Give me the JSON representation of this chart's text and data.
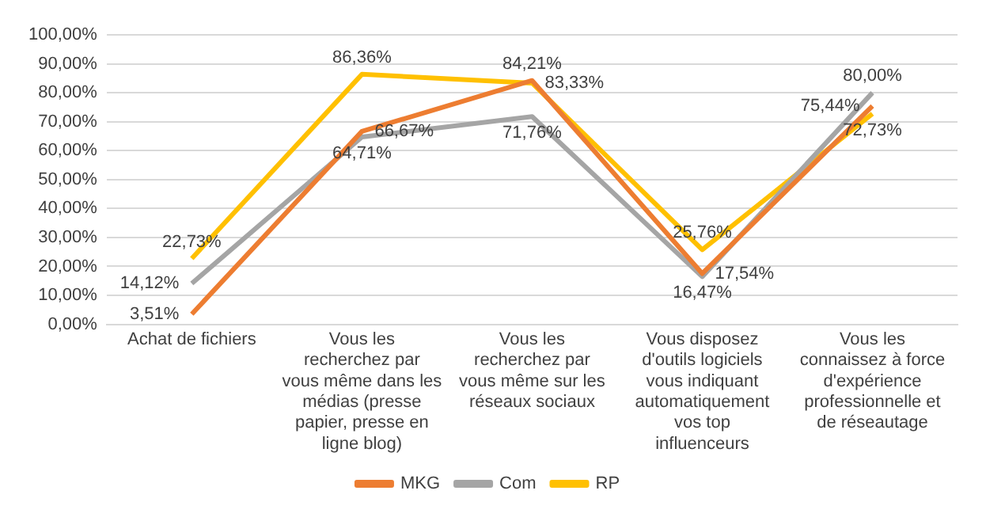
{
  "chart_data": {
    "type": "line",
    "categories": [
      "Achat de fichiers",
      "Vous les recherchez par vous même dans les médias (presse papier, presse en ligne blog)",
      "Vous les recherchez par vous même sur les réseaux sociaux",
      "Vous disposez d'outils logiciels vous indiquant automatiquement vos top influenceurs",
      "Vous les connaissez à force d'expérience professionnelle et de réseautage"
    ],
    "series": [
      {
        "name": "MKG",
        "color": "#ed7d31",
        "values": [
          3.51,
          66.67,
          84.21,
          17.54,
          75.44
        ],
        "value_labels": [
          "3,51%",
          "66,67%",
          "84,21%",
          "17,54%",
          "75,44%"
        ]
      },
      {
        "name": "Com",
        "color": "#a5a5a5",
        "values": [
          14.12,
          64.71,
          71.76,
          16.47,
          80.0
        ],
        "value_labels": [
          "14,12%",
          "64,71%",
          "71,76%",
          "16,47%",
          "80,00%"
        ]
      },
      {
        "name": "RP",
        "color": "#ffc000",
        "values": [
          22.73,
          86.36,
          83.33,
          25.76,
          72.73
        ],
        "value_labels": [
          "22,73%",
          "86,36%",
          "83,33%",
          "25,76%",
          "72,73%"
        ]
      }
    ],
    "ylim": [
      0,
      100
    ],
    "yticks": [
      {
        "value": 0,
        "label": "0,00%"
      },
      {
        "value": 10,
        "label": "10,00%"
      },
      {
        "value": 20,
        "label": "20,00%"
      },
      {
        "value": 30,
        "label": "30,00%"
      },
      {
        "value": 40,
        "label": "40,00%"
      },
      {
        "value": 50,
        "label": "50,00%"
      },
      {
        "value": 60,
        "label": "60,00%"
      },
      {
        "value": 70,
        "label": "70,00%"
      },
      {
        "value": 80,
        "label": "80,00%"
      },
      {
        "value": 90,
        "label": "90,00%"
      },
      {
        "value": 100,
        "label": "100,00%"
      }
    ],
    "grid": "y",
    "legend": "bottom",
    "marker": "none",
    "line_style": "solid"
  }
}
